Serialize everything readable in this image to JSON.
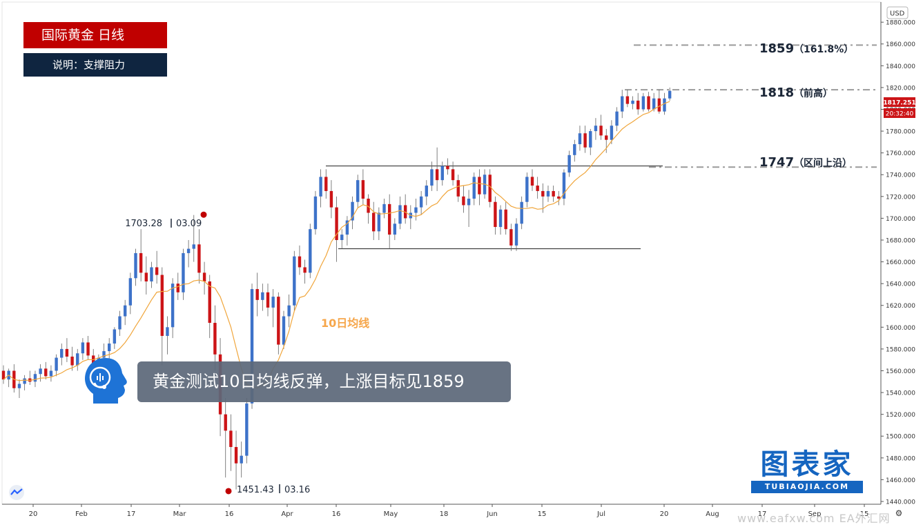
{
  "header": {
    "title": "国际黄金  日线",
    "description": "说明：支撑阻力"
  },
  "caption": "黄金测试10日均线反弹，上涨目标见1859",
  "ma_label": "10日均线",
  "brand": {
    "name_cn": "图表家",
    "name_en": "TUBIAOJIA.COM"
  },
  "watermark": "www.eafxw.com  EA外汇网",
  "colors": {
    "up": "#3d72c9",
    "down": "#cc1417",
    "ma": "#f0a53a",
    "title_bg": "#c00000",
    "desc_bg": "#0f2540"
  },
  "chart_data": {
    "type": "candlestick",
    "currency": "USD",
    "ylim": [
      1440,
      1900
    ],
    "y_ticks": [
      1440,
      1460,
      1480,
      1500,
      1520,
      1540,
      1560,
      1580,
      1600,
      1620,
      1640,
      1660,
      1680,
      1700,
      1720,
      1740,
      1760,
      1780,
      1800,
      1820,
      1840,
      1860,
      1880
    ],
    "x_ticks": [
      "20",
      "Feb",
      "17",
      "Mar",
      "16",
      "Apr",
      "16",
      "May",
      "18",
      "Jun",
      "15",
      "Jul",
      "20",
      "Aug",
      "17",
      "Sep",
      "15"
    ],
    "last_price": "1817.251",
    "countdown": "20:32:40",
    "levels": [
      {
        "value": 1859,
        "label": "1859",
        "note": "（161.8%）"
      },
      {
        "value": 1818,
        "label": "1818",
        "note": "（前高）"
      },
      {
        "value": 1747,
        "label": "1747",
        "note": "（区间上沿）"
      }
    ],
    "range_lines": [
      1748,
      1672
    ],
    "annotations": [
      {
        "price": "1703.28",
        "date": "03.09",
        "value": 1703.28
      },
      {
        "price": "1451.43",
        "date": "03.16",
        "value": 1451.43
      }
    ],
    "candles": [
      [
        1560,
        1565,
        1548,
        1552
      ],
      [
        1552,
        1562,
        1545,
        1560
      ],
      [
        1560,
        1566,
        1540,
        1544
      ],
      [
        1544,
        1552,
        1535,
        1548
      ],
      [
        1548,
        1556,
        1542,
        1553
      ],
      [
        1553,
        1560,
        1547,
        1550
      ],
      [
        1550,
        1560,
        1545,
        1557
      ],
      [
        1557,
        1566,
        1550,
        1562
      ],
      [
        1562,
        1568,
        1552,
        1555
      ],
      [
        1555,
        1565,
        1550,
        1560
      ],
      [
        1560,
        1575,
        1555,
        1572
      ],
      [
        1572,
        1585,
        1565,
        1580
      ],
      [
        1580,
        1590,
        1568,
        1573
      ],
      [
        1573,
        1582,
        1560,
        1565
      ],
      [
        1565,
        1580,
        1560,
        1576
      ],
      [
        1576,
        1590,
        1570,
        1586
      ],
      [
        1586,
        1592,
        1570,
        1574
      ],
      [
        1574,
        1580,
        1555,
        1560
      ],
      [
        1560,
        1575,
        1548,
        1572
      ],
      [
        1572,
        1585,
        1565,
        1578
      ],
      [
        1578,
        1590,
        1570,
        1585
      ],
      [
        1585,
        1600,
        1580,
        1598
      ],
      [
        1598,
        1615,
        1592,
        1610
      ],
      [
        1610,
        1625,
        1602,
        1620
      ],
      [
        1620,
        1650,
        1612,
        1645
      ],
      [
        1645,
        1672,
        1638,
        1668
      ],
      [
        1668,
        1690,
        1642,
        1650
      ],
      [
        1650,
        1665,
        1630,
        1642
      ],
      [
        1642,
        1660,
        1636,
        1655
      ],
      [
        1655,
        1670,
        1640,
        1648
      ],
      [
        1648,
        1655,
        1565,
        1592
      ],
      [
        1592,
        1610,
        1575,
        1600
      ],
      [
        1600,
        1645,
        1590,
        1640
      ],
      [
        1640,
        1650,
        1625,
        1632
      ],
      [
        1632,
        1672,
        1625,
        1668
      ],
      [
        1668,
        1680,
        1655,
        1672
      ],
      [
        1672,
        1703,
        1660,
        1676
      ],
      [
        1676,
        1690,
        1640,
        1650
      ],
      [
        1650,
        1660,
        1630,
        1642
      ],
      [
        1642,
        1648,
        1590,
        1604
      ],
      [
        1604,
        1620,
        1560,
        1575
      ],
      [
        1575,
        1590,
        1500,
        1520
      ],
      [
        1520,
        1535,
        1462,
        1505
      ],
      [
        1505,
        1520,
        1468,
        1490
      ],
      [
        1490,
        1505,
        1451,
        1475
      ],
      [
        1475,
        1495,
        1462,
        1482
      ],
      [
        1482,
        1535,
        1475,
        1530
      ],
      [
        1530,
        1640,
        1525,
        1635
      ],
      [
        1635,
        1650,
        1610,
        1625
      ],
      [
        1625,
        1640,
        1615,
        1632
      ],
      [
        1632,
        1640,
        1610,
        1618
      ],
      [
        1618,
        1635,
        1600,
        1628
      ],
      [
        1628,
        1632,
        1575,
        1584
      ],
      [
        1584,
        1615,
        1580,
        1610
      ],
      [
        1610,
        1630,
        1600,
        1620
      ],
      [
        1620,
        1670,
        1615,
        1665
      ],
      [
        1665,
        1675,
        1648,
        1655
      ],
      [
        1655,
        1662,
        1640,
        1650
      ],
      [
        1650,
        1695,
        1645,
        1690
      ],
      [
        1690,
        1725,
        1685,
        1720
      ],
      [
        1720,
        1745,
        1710,
        1738
      ],
      [
        1738,
        1745,
        1718,
        1725
      ],
      [
        1725,
        1735,
        1700,
        1710
      ],
      [
        1710,
        1720,
        1660,
        1680
      ],
      [
        1680,
        1690,
        1672,
        1685
      ],
      [
        1685,
        1702,
        1675,
        1698
      ],
      [
        1698,
        1720,
        1690,
        1715
      ],
      [
        1715,
        1740,
        1710,
        1735
      ],
      [
        1735,
        1745,
        1712,
        1718
      ],
      [
        1718,
        1722,
        1695,
        1705
      ],
      [
        1705,
        1715,
        1680,
        1688
      ],
      [
        1688,
        1710,
        1680,
        1705
      ],
      [
        1705,
        1718,
        1700,
        1713
      ],
      [
        1713,
        1722,
        1672,
        1685
      ],
      [
        1685,
        1700,
        1680,
        1695
      ],
      [
        1695,
        1720,
        1690,
        1712
      ],
      [
        1712,
        1722,
        1695,
        1700
      ],
      [
        1700,
        1712,
        1690,
        1705
      ],
      [
        1705,
        1718,
        1698,
        1710
      ],
      [
        1710,
        1725,
        1703,
        1720
      ],
      [
        1720,
        1735,
        1712,
        1730
      ],
      [
        1730,
        1752,
        1725,
        1745
      ],
      [
        1745,
        1765,
        1725,
        1735
      ],
      [
        1735,
        1752,
        1730,
        1748
      ],
      [
        1748,
        1755,
        1740,
        1745
      ],
      [
        1745,
        1752,
        1730,
        1735
      ],
      [
        1735,
        1740,
        1715,
        1720
      ],
      [
        1720,
        1730,
        1705,
        1712
      ],
      [
        1712,
        1726,
        1692,
        1718
      ],
      [
        1718,
        1742,
        1712,
        1738
      ],
      [
        1738,
        1745,
        1712,
        1722
      ],
      [
        1722,
        1745,
        1718,
        1740
      ],
      [
        1740,
        1745,
        1710,
        1715
      ],
      [
        1715,
        1720,
        1685,
        1692
      ],
      [
        1692,
        1712,
        1685,
        1708
      ],
      [
        1708,
        1715,
        1685,
        1690
      ],
      [
        1690,
        1695,
        1670,
        1675
      ],
      [
        1675,
        1700,
        1670,
        1695
      ],
      [
        1695,
        1720,
        1690,
        1715
      ],
      [
        1715,
        1742,
        1710,
        1738
      ],
      [
        1738,
        1745,
        1725,
        1730
      ],
      [
        1730,
        1738,
        1718,
        1725
      ],
      [
        1725,
        1732,
        1705,
        1720
      ],
      [
        1720,
        1730,
        1715,
        1725
      ],
      [
        1725,
        1730,
        1715,
        1720
      ],
      [
        1720,
        1725,
        1712,
        1718
      ],
      [
        1718,
        1745,
        1712,
        1742
      ],
      [
        1742,
        1762,
        1738,
        1758
      ],
      [
        1758,
        1772,
        1752,
        1768
      ],
      [
        1768,
        1785,
        1762,
        1778
      ],
      [
        1778,
        1785,
        1760,
        1765
      ],
      [
        1765,
        1782,
        1758,
        1780
      ],
      [
        1780,
        1792,
        1772,
        1785
      ],
      [
        1785,
        1795,
        1772,
        1776
      ],
      [
        1776,
        1782,
        1760,
        1772
      ],
      [
        1772,
        1790,
        1768,
        1785
      ],
      [
        1785,
        1802,
        1780,
        1798
      ],
      [
        1798,
        1818,
        1792,
        1812
      ],
      [
        1812,
        1818,
        1802,
        1805
      ],
      [
        1805,
        1812,
        1800,
        1808
      ],
      [
        1808,
        1815,
        1795,
        1800
      ],
      [
        1800,
        1815,
        1798,
        1812
      ],
      [
        1812,
        1816,
        1798,
        1800
      ],
      [
        1800,
        1815,
        1798,
        1810
      ],
      [
        1810,
        1818,
        1796,
        1798
      ],
      [
        1798,
        1815,
        1795,
        1810
      ],
      [
        1810,
        1820,
        1808,
        1817
      ]
    ]
  }
}
